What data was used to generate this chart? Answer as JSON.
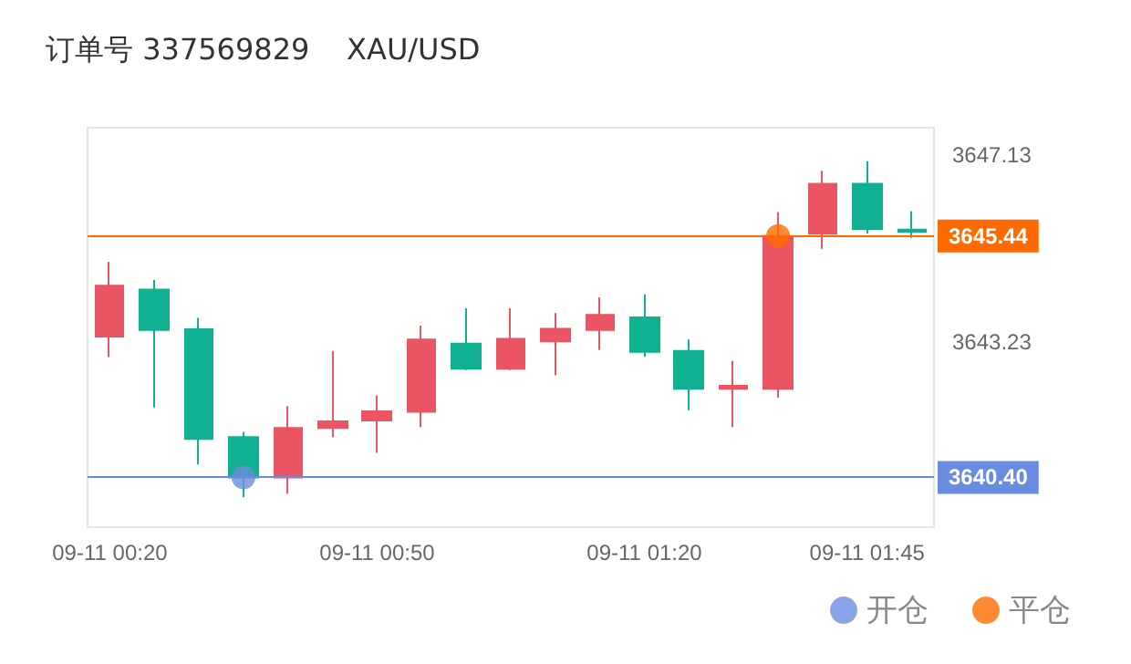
{
  "chart_data": {
    "type": "candlestick",
    "title": "订单号 337569829    XAU/USD",
    "categories": [
      "09-11 00:20",
      null,
      null,
      null,
      null,
      null,
      "09-11 00:50",
      null,
      null,
      null,
      null,
      null,
      "09-11 01:20",
      null,
      null,
      null,
      null,
      "09-11 01:45",
      null
    ],
    "series": [
      {
        "ohlc": [
          [
            3643.34,
            3644.9,
            3642.91,
            3644.4
          ],
          [
            3644.32,
            3644.52,
            3641.86,
            3643.48
          ],
          [
            3643.49,
            3643.73,
            3640.67,
            3641.2
          ],
          [
            3641.24,
            3641.35,
            3639.99,
            3640.4
          ],
          [
            3640.4,
            3641.89,
            3640.06,
            3641.43
          ],
          [
            3641.43,
            3643.04,
            3641.24,
            3641.57
          ],
          [
            3641.59,
            3642.11,
            3640.91,
            3641.78
          ],
          [
            3641.77,
            3643.57,
            3641.45,
            3643.28
          ],
          [
            3643.19,
            3643.93,
            3642.64,
            3642.67
          ],
          [
            3642.67,
            3643.93,
            3642.64,
            3643.29
          ],
          [
            3643.24,
            3643.83,
            3642.53,
            3643.5
          ],
          [
            3643.48,
            3644.16,
            3643.06,
            3643.79
          ],
          [
            3643.74,
            3644.22,
            3642.92,
            3643.02
          ],
          [
            3643.04,
            3643.28,
            3641.8,
            3642.25
          ],
          [
            3642.25,
            3642.83,
            3641.45,
            3642.31
          ],
          [
            3642.25,
            3645.94,
            3642.07,
            3645.44
          ],
          [
            3645.49,
            3646.8,
            3645.17,
            3646.53
          ],
          [
            3646.53,
            3647.0,
            3645.49,
            3645.58
          ],
          [
            3645.57,
            3645.96,
            3645.4,
            3645.53
          ]
        ],
        "colors": [
          "#eb5463",
          "#0fb191",
          "#0fb191",
          "#0fb191",
          "#eb5463",
          "#eb5463",
          "#eb5463",
          "#eb5463",
          "#0fb191",
          "#eb5463",
          "#eb5463",
          "#eb5463",
          "#0fb191",
          "#0fb191",
          "#eb5463",
          "#eb5463",
          "#eb5463",
          "#0fb191",
          "#0fb191"
        ]
      },
      {
        "type": "scatter",
        "name": "开仓",
        "color": "#6a8ce0",
        "values": [
          null,
          null,
          null,
          3640.4,
          null,
          null,
          null,
          null,
          null,
          null,
          null,
          null,
          null,
          null,
          null,
          null,
          null,
          null,
          null
        ]
      },
      {
        "type": "scatter",
        "name": "平仓",
        "color": "#ff6a00",
        "values": [
          null,
          null,
          null,
          null,
          null,
          null,
          null,
          null,
          null,
          null,
          null,
          null,
          null,
          null,
          null,
          3645.44,
          null,
          null,
          null
        ]
      }
    ],
    "ylim": [
      3639.36,
      3647.7
    ],
    "yticks": [
      3647.13,
      3643.23
    ],
    "ref_lines": [
      {
        "axis": "y",
        "value": 3645.44,
        "label": "3645.44",
        "color": "#ff6a00"
      },
      {
        "axis": "y",
        "value": 3640.4,
        "label": "3640.40",
        "color": "#6a8ce0"
      }
    ],
    "marker": "circle",
    "grid": false,
    "legend": "bottom right"
  }
}
